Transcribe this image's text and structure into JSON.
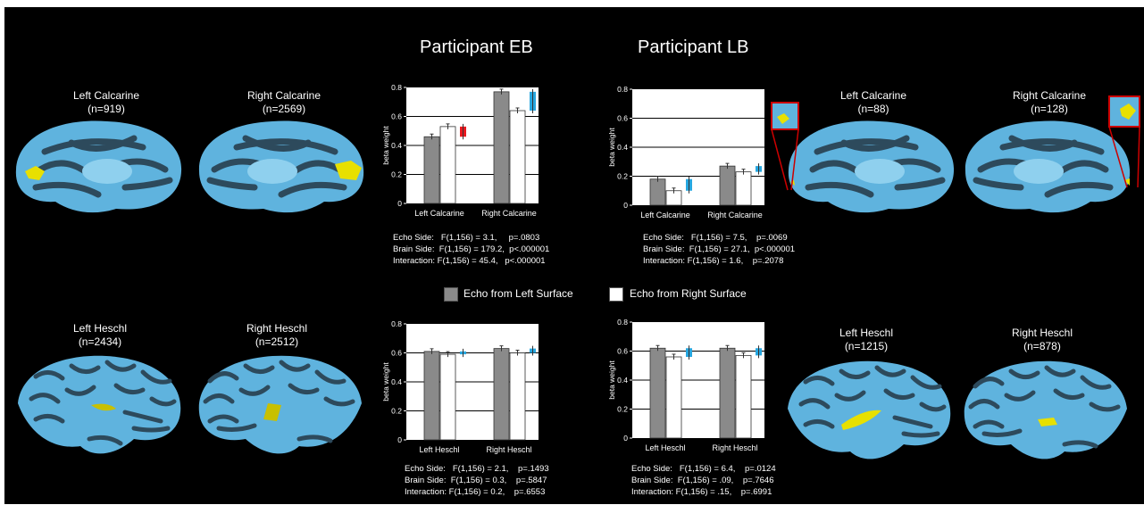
{
  "titles": {
    "eb": "Participant EB",
    "lb": "Participant LB"
  },
  "brains": {
    "eb_left_calcarine": {
      "name": "Left Calcarine",
      "n": "(n=919)"
    },
    "eb_right_calcarine": {
      "name": "Right Calcarine",
      "n": "(n=2569)"
    },
    "lb_left_calcarine": {
      "name": "Left Calcarine",
      "n": "(n=88)"
    },
    "lb_right_calcarine": {
      "name": "Right Calcarine",
      "n": "(n=128)"
    },
    "eb_left_heschl": {
      "name": "Left Heschl",
      "n": "(n=2434)"
    },
    "eb_right_heschl": {
      "name": "Right Heschl",
      "n": "(n=2512)"
    },
    "lb_left_heschl": {
      "name": "Left Heschl",
      "n": "(n=1215)"
    },
    "lb_right_heschl": {
      "name": "Right Heschl",
      "n": "(n=878)"
    }
  },
  "legend": {
    "left": "Echo from Left Surface",
    "right": "Echo from Right Surface"
  },
  "colors": {
    "left_bar": "#8a8a8a",
    "right_bar": "#ffffff",
    "red": "#e8191f",
    "blue": "#27a7e0",
    "roi": "#e8e000",
    "brain": "#5fb3de"
  },
  "stats": {
    "eb_calcarine": "Echo Side:   F(1,156) = 3.1,     p=.0803\nBrain Side:  F(1,156) = 179.2,  p<.000001\nInteraction: F(1,156) = 45.4,   p<.000001",
    "lb_calcarine": "Echo Side:   F(1,156) = 7.5,    p=.0069\nBrain Side:  F(1,156) = 27.1,  p<.000001\nInteraction: F(1,156) = 1.6,    p=.2078",
    "eb_heschl": "Echo Side:   F(1,156) = 2.1,    p=.1493\nBrain Side:  F(1,156) = 0.3,    p=.5847\nInteraction: F(1,156) = 0.2,    p=.6553",
    "lb_heschl": "Echo Side:   F(1,156) = 6.4,    p=.0124\nBrain Side:  F(1,156) = .09,    p=.7646\nInteraction: F(1,156) = .15,    p=.6991"
  },
  "chart_data": [
    {
      "type": "bar",
      "ylabel": "beta weight",
      "ylim": [
        0,
        0.8
      ],
      "yticks": [
        "0",
        "0.2",
        "0.4",
        "0.6",
        "0.8"
      ],
      "categories": [
        "Left Calcarine",
        "Right Calcarine"
      ],
      "series": [
        {
          "name": "Echo from Left Surface",
          "values": [
            0.46,
            0.77
          ]
        },
        {
          "name": "Echo from Right Surface",
          "values": [
            0.53,
            0.64
          ]
        }
      ],
      "difference": [
        -0.07,
        0.13
      ]
    },
    {
      "type": "bar",
      "ylabel": "beta weight",
      "ylim": [
        0,
        0.8
      ],
      "yticks": [
        "0",
        "0.2",
        "0.4",
        "0.6",
        "0.8"
      ],
      "categories": [
        "Left Calcarine",
        "Right Calcarine"
      ],
      "series": [
        {
          "name": "Echo from Left Surface",
          "values": [
            0.18,
            0.27
          ]
        },
        {
          "name": "Echo from Right Surface",
          "values": [
            0.1,
            0.23
          ]
        }
      ],
      "difference": [
        0.08,
        0.04
      ]
    },
    {
      "type": "bar",
      "ylabel": "beta weight",
      "ylim": [
        0,
        0.8
      ],
      "yticks": [
        "0",
        "0.2",
        "0.4",
        "0.6",
        "0.8"
      ],
      "categories": [
        "Left Heschl",
        "Right Heschl"
      ],
      "series": [
        {
          "name": "Echo from Left Surface",
          "values": [
            0.61,
            0.63
          ]
        },
        {
          "name": "Echo from Right Surface",
          "values": [
            0.59,
            0.6
          ]
        }
      ],
      "difference": [
        0.02,
        0.03
      ]
    },
    {
      "type": "bar",
      "ylabel": "beta weight",
      "ylim": [
        0,
        0.8
      ],
      "yticks": [
        "0",
        "0.2",
        "0.4",
        "0.6",
        "0.8"
      ],
      "categories": [
        "Left Heschl",
        "Right Heschl"
      ],
      "series": [
        {
          "name": "Echo from Left Surface",
          "values": [
            0.62,
            0.62
          ]
        },
        {
          "name": "Echo from Right Surface",
          "values": [
            0.56,
            0.57
          ]
        }
      ],
      "difference": [
        0.06,
        0.05
      ]
    }
  ]
}
